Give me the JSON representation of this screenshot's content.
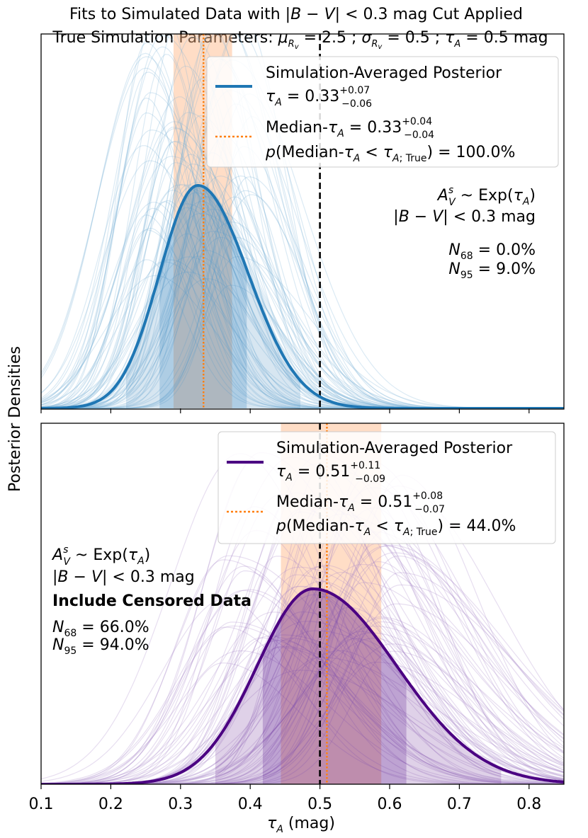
{
  "title": {
    "line1": "Fits to Simulated Data with |B − V| < 0.3 mag Cut Applied",
    "line2": "True Simulation Parameters: μ_Rv = 2.5 ; σ_Rv = 0.5 ; τ_A = 0.5 mag"
  },
  "colors": {
    "blue": "#1f77b4",
    "purple": "#4b0082",
    "orange": "#ff7f0e",
    "orange_band": "#ffb380",
    "blue_thin": "#7fb3d8",
    "purple_thin": "#a989c9"
  },
  "chart_data": [
    {
      "type": "line",
      "panel": "top",
      "title": "Fits to Simulated Data with |B − V| < 0.3 mag Cut Applied",
      "xlabel": "τ_A (mag)",
      "ylabel": "Posterior Densities",
      "xlim": [
        0.1,
        0.85
      ],
      "xticks": [
        0.1,
        0.2,
        0.3,
        0.4,
        0.5,
        0.6,
        0.7,
        0.8
      ],
      "true_value": 0.5,
      "averaged_posterior": {
        "mode": 0.325,
        "sigma_left": 0.055,
        "sigma_right": 0.072,
        "band68": [
          0.27,
          0.395
        ],
        "band95": [
          0.222,
          0.472
        ]
      },
      "median_tau": {
        "value": 0.333,
        "band": [
          0.29,
          0.374
        ]
      },
      "legend": {
        "avg_label": "Simulation-Averaged Posterior",
        "avg_value": "τ_A = 0.33 +0.07 −0.06",
        "median_label": "Median-τ_A = 0.33 +0.04 −0.04",
        "prob_label": "p(Median-τ_A < τ_A; True) = 100.0%"
      },
      "annotations": [
        "A_V^s ~ Exp(τ_A)",
        "|B − V| < 0.3 mag",
        "N_68 = 0.0%",
        "N_95 = 9.0%"
      ]
    },
    {
      "type": "line",
      "panel": "bottom",
      "xlabel": "τ_A (mag)",
      "ylabel": "Posterior Densities",
      "xlim": [
        0.1,
        0.85
      ],
      "xticks": [
        0.1,
        0.2,
        0.3,
        0.4,
        0.5,
        0.6,
        0.7,
        0.8
      ],
      "xticklabels": [
        "0.1",
        "0.2",
        "0.3",
        "0.4",
        "0.5",
        "0.6",
        "0.7",
        "0.8"
      ],
      "true_value": 0.5,
      "averaged_posterior": {
        "mode": 0.49,
        "sigma_left": 0.08,
        "sigma_right": 0.12,
        "band68": [
          0.418,
          0.624
        ],
        "band95": [
          0.35,
          0.76
        ]
      },
      "median_tau": {
        "value": 0.51,
        "band": [
          0.444,
          0.588
        ]
      },
      "legend": {
        "avg_label": "Simulation-Averaged Posterior",
        "avg_value": "τ_A = 0.51 +0.11 −0.09",
        "median_label": "Median-τ_A = 0.51 +0.08 −0.07",
        "prob_label": "p(Median-τ_A < τ_A; True) = 44.0%"
      },
      "annotations": [
        "A_V^s ~ Exp(τ_A)",
        "|B − V| < 0.3 mag",
        "Include Censored Data",
        "N_68 = 66.0%",
        "N_95 = 94.0%"
      ]
    }
  ]
}
